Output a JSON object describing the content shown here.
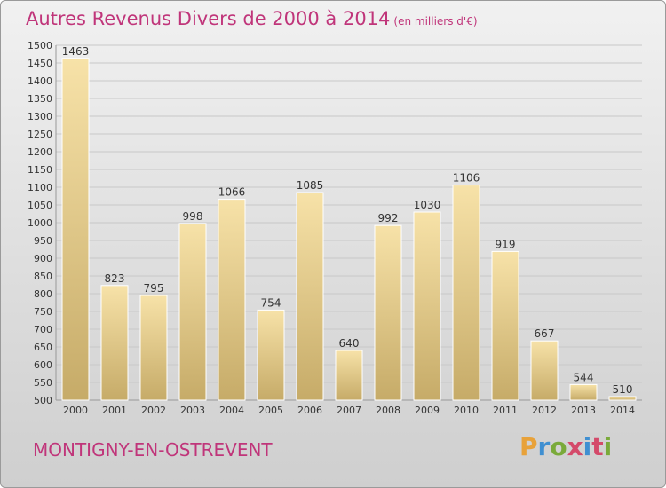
{
  "header": {
    "title": "Autres Revenus Divers de 2000 à 2014",
    "subtitle": "(en milliers d'€)"
  },
  "footer": {
    "city": "MONTIGNY-EN-OSTREVENT",
    "logo": "Proxiti",
    "logo_colors": [
      "#e8a23a",
      "#3f8fd1",
      "#7aaa3a",
      "#d44a6a",
      "#3f8fd1",
      "#d44a6a",
      "#7aaa3a"
    ]
  },
  "colors": {
    "accent": "#c0357a",
    "bar_light": "#f5dea0",
    "bar_dark": "#c7ad6a",
    "grid": "#c8c8c8",
    "text": "#333333"
  },
  "chart_data": {
    "type": "bar",
    "title": "Autres Revenus Divers de 2000 à 2014",
    "xlabel": "",
    "ylabel": "",
    "ylim": [
      500,
      1500
    ],
    "ytick_step": 50,
    "grid": true,
    "categories": [
      "2000",
      "2001",
      "2002",
      "2003",
      "2004",
      "2005",
      "2006",
      "2007",
      "2008",
      "2009",
      "2010",
      "2011",
      "2012",
      "2013",
      "2014"
    ],
    "values": [
      1463,
      823,
      795,
      998,
      1066,
      754,
      1085,
      640,
      992,
      1030,
      1106,
      919,
      667,
      544,
      510
    ]
  }
}
